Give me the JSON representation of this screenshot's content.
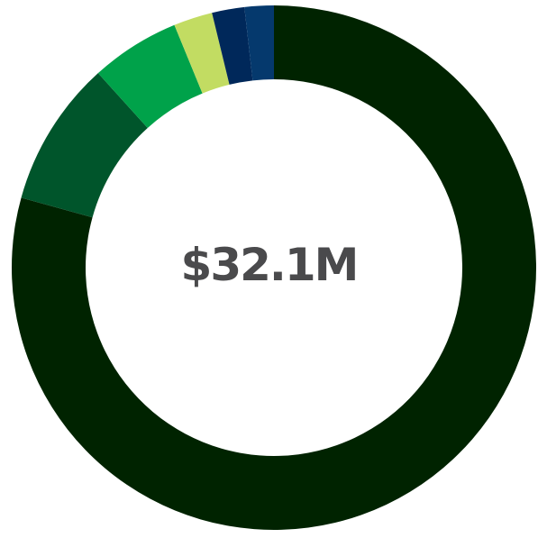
{
  "chart_data": {
    "type": "pie",
    "variant": "donut",
    "center_label": "$32.1M",
    "slices": [
      {
        "value": 79.3,
        "color": "#002300"
      },
      {
        "value": 9.0,
        "color": "#00552b"
      },
      {
        "value": 5.5,
        "color": "#00a24a"
      },
      {
        "value": 2.4,
        "color": "#c2dc62"
      },
      {
        "value": 2.0,
        "color": "#00285a"
      },
      {
        "value": 1.8,
        "color": "#05396d"
      }
    ]
  }
}
